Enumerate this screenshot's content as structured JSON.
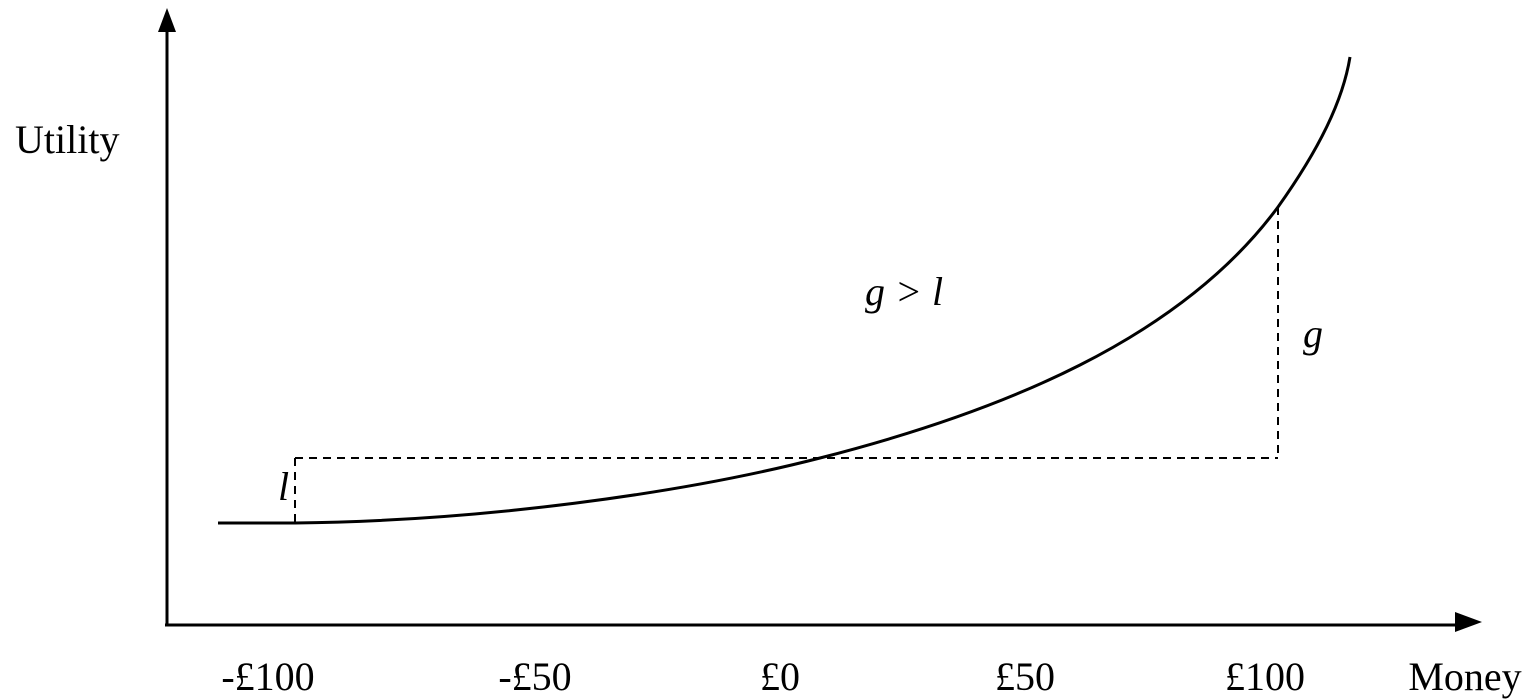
{
  "axes": {
    "y_label": "Utility",
    "x_label": "Money",
    "x_tick_labels": [
      "-£100",
      "-£50",
      "£0",
      "£50",
      "£100"
    ]
  },
  "annotations": {
    "loss": "l",
    "gain": "g",
    "comparison": "g > l"
  }
}
